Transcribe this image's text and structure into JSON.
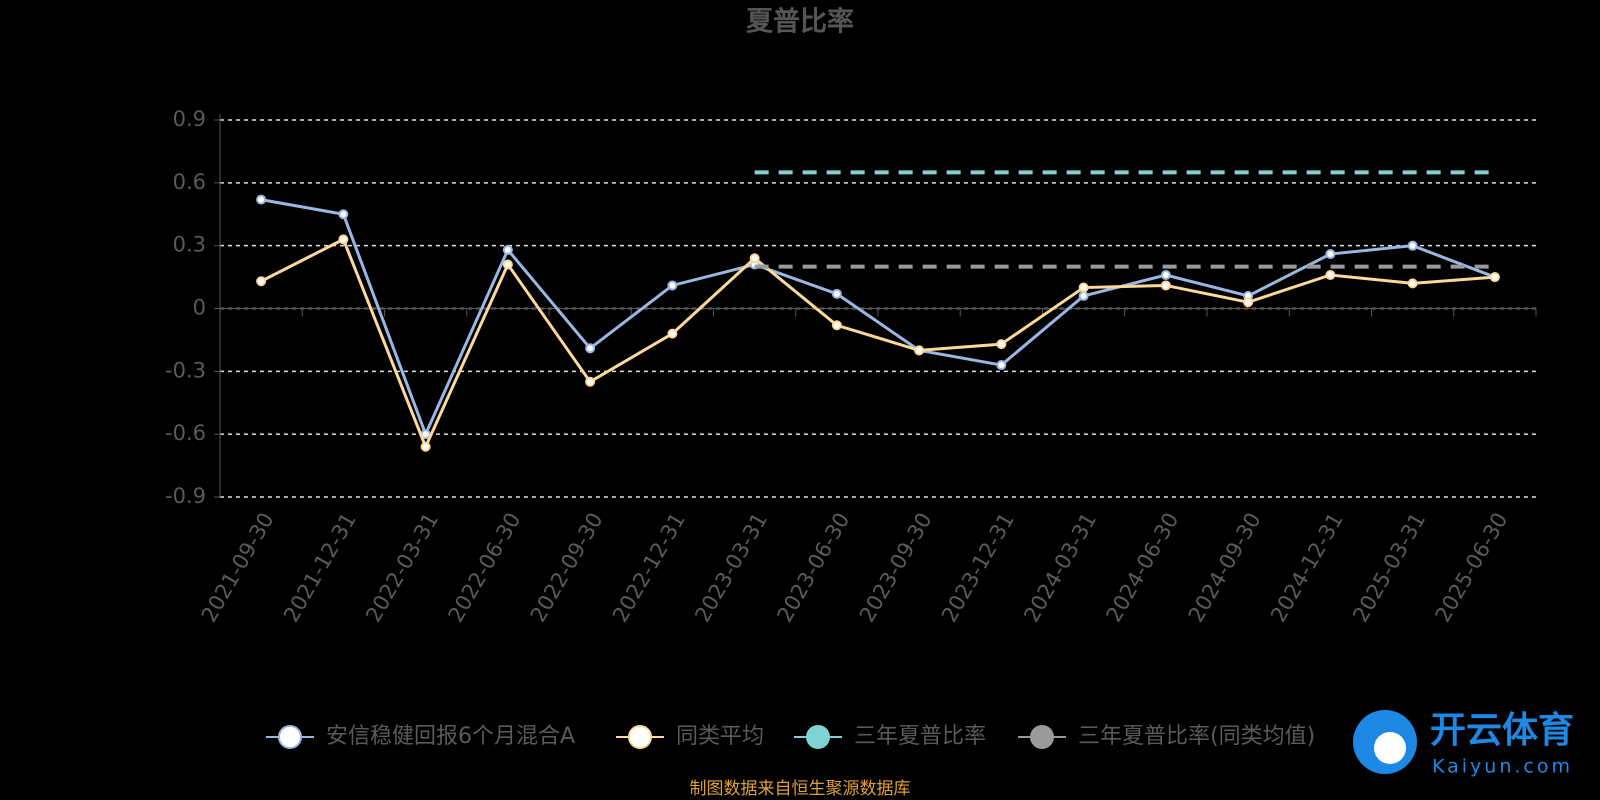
{
  "chart_data": {
    "type": "line",
    "title": "夏普比率",
    "categories": [
      "2021-09-30",
      "2021-12-31",
      "2022-03-31",
      "2022-06-30",
      "2022-09-30",
      "2022-12-31",
      "2023-03-31",
      "2023-06-30",
      "2023-09-30",
      "2023-12-31",
      "2024-03-31",
      "2024-06-30",
      "2024-09-30",
      "2024-12-31",
      "2025-03-31",
      "2025-06-30"
    ],
    "series": [
      {
        "name": "安信稳健回报6个月混合A",
        "color": "#9ab7e3",
        "style": "solid",
        "values": [
          0.52,
          0.45,
          -0.6,
          0.28,
          -0.19,
          0.11,
          0.21,
          0.07,
          -0.2,
          -0.27,
          0.06,
          0.16,
          0.06,
          0.26,
          0.3,
          0.15
        ]
      },
      {
        "name": "同类平均",
        "color": "#fcd89a",
        "style": "solid",
        "values": [
          0.13,
          0.33,
          -0.66,
          0.21,
          -0.35,
          -0.12,
          0.24,
          -0.08,
          -0.2,
          -0.17,
          0.1,
          0.11,
          0.03,
          0.16,
          0.12,
          0.15
        ]
      },
      {
        "name": "三年夏普比率",
        "color": "#7fd3d3",
        "style": "dashed",
        "values": [
          null,
          null,
          null,
          null,
          null,
          null,
          0.65,
          0.65,
          0.65,
          0.65,
          0.65,
          0.65,
          0.65,
          0.65,
          0.65,
          0.65
        ]
      },
      {
        "name": "三年夏普比率(同类均值)",
        "color": "#9a9a9a",
        "style": "dashed",
        "values": [
          null,
          null,
          null,
          null,
          null,
          null,
          0.2,
          0.2,
          0.2,
          0.2,
          0.2,
          0.2,
          0.2,
          0.2,
          0.2,
          0.2
        ]
      }
    ],
    "ylim": [
      -0.9,
      0.9
    ],
    "yticks": [
      -0.9,
      -0.6,
      -0.3,
      0,
      0.3,
      0.6,
      0.9
    ],
    "grid": true,
    "legend": "bottom",
    "source": "制图数据来自恒生聚源数据库"
  },
  "watermark": {
    "text": "开云体育",
    "url": "Kaiyun.com"
  }
}
